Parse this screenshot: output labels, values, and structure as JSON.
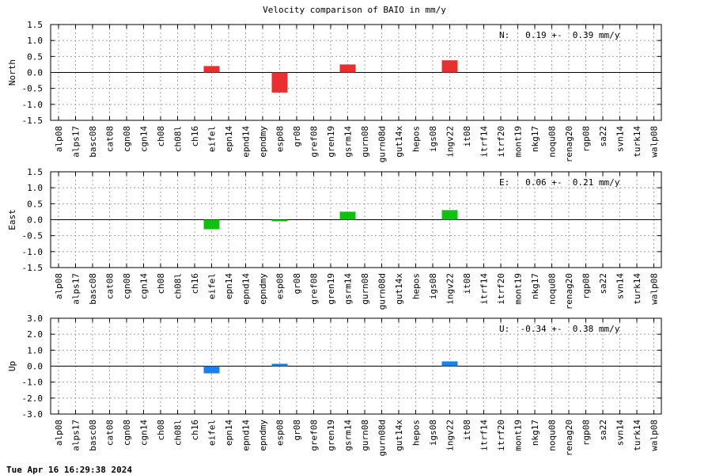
{
  "chart_data": {
    "type": "bar",
    "title": "Velocity comparison of BAIO in mm/y",
    "categories": [
      "alp08",
      "alps17",
      "basc08",
      "cat08",
      "cgn08",
      "cgn14",
      "ch08",
      "ch08l",
      "ch16",
      "eifel",
      "epn14",
      "epnd14",
      "epndmy",
      "esp08",
      "gr08",
      "gref08",
      "gren19",
      "gsrm14",
      "gurn08",
      "gurn08d",
      "gut14x",
      "hepos",
      "igs08",
      "ingv22",
      "it08",
      "itrf14",
      "itrf20",
      "mont19",
      "nkg17",
      "noqu08",
      "renag20",
      "rgp08",
      "sa22",
      "svn14",
      "turk14",
      "walp08"
    ],
    "panels": [
      {
        "ylabel": "North",
        "color": "#e83030",
        "ylim": [
          -1.5,
          1.5
        ],
        "yticks": [
          "1.5",
          "1.0",
          "0.5",
          "0.0",
          "-0.5",
          "-1.0",
          "-1.5"
        ],
        "ytick_values": [
          1.5,
          1.0,
          0.5,
          0.0,
          -0.5,
          -1.0,
          -1.5
        ],
        "stat": "N:   0.19 +-  0.39 mm/y",
        "values": [
          null,
          null,
          null,
          null,
          null,
          null,
          null,
          null,
          null,
          0.2,
          null,
          null,
          null,
          -0.63,
          null,
          null,
          null,
          0.25,
          null,
          null,
          null,
          null,
          null,
          0.38,
          null,
          null,
          null,
          null,
          null,
          null,
          null,
          null,
          null,
          null,
          null,
          null
        ]
      },
      {
        "ylabel": "East",
        "color": "#12c012",
        "ylim": [
          -1.5,
          1.5
        ],
        "yticks": [
          "1.5",
          "1.0",
          "0.5",
          "0.0",
          "-0.5",
          "-1.0",
          "-1.5"
        ],
        "ytick_values": [
          1.5,
          1.0,
          0.5,
          0.0,
          -0.5,
          -1.0,
          -1.5
        ],
        "stat": "E:   0.06 +-  0.21 mm/y",
        "values": [
          null,
          null,
          null,
          null,
          null,
          null,
          null,
          null,
          null,
          -0.3,
          null,
          null,
          null,
          -0.05,
          null,
          null,
          null,
          0.25,
          null,
          null,
          null,
          null,
          null,
          0.3,
          null,
          null,
          null,
          null,
          null,
          null,
          null,
          null,
          null,
          null,
          null,
          null
        ]
      },
      {
        "ylabel": "Up",
        "color": "#1a80f0",
        "ylim": [
          -3.0,
          3.0
        ],
        "yticks": [
          "3.0",
          "2.0",
          "1.0",
          "0.0",
          "-1.0",
          "-2.0",
          "-3.0"
        ],
        "ytick_values": [
          3.0,
          2.0,
          1.0,
          0.0,
          -1.0,
          -2.0,
          -3.0
        ],
        "stat": "U:  -0.34 +-  0.38 mm/y",
        "values": [
          null,
          null,
          null,
          null,
          null,
          null,
          null,
          null,
          null,
          -0.45,
          null,
          null,
          null,
          0.15,
          null,
          null,
          null,
          null,
          null,
          null,
          null,
          null,
          null,
          0.3,
          null,
          null,
          null,
          null,
          null,
          null,
          null,
          null,
          null,
          null,
          null,
          null
        ]
      }
    ],
    "grid": true
  },
  "footer": {
    "timestamp": "Tue Apr 16 16:29:38 2024"
  }
}
